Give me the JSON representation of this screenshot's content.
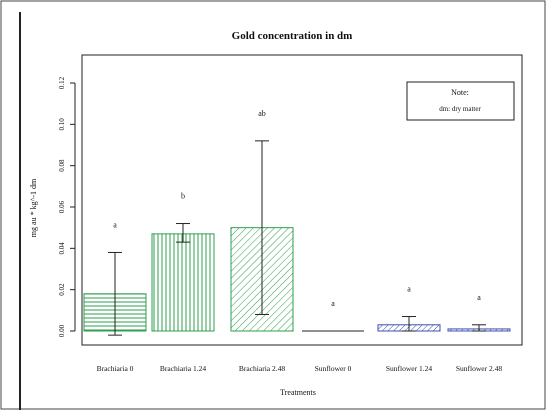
{
  "chart_data": {
    "type": "bar",
    "title": "Gold concentration in dm",
    "xlabel": "Treatments",
    "ylabel": "mg au * kg^-1 dm",
    "ylim": [
      0,
      0.12
    ],
    "yticks": [
      "0.00",
      "0.02",
      "0.04",
      "0.06",
      "0.08",
      "0.10",
      "0.12"
    ],
    "categories": [
      "Brachiaria 0",
      "Brachiaria 1.24",
      "Brachiaria 2.48",
      "Sunflower 0",
      "Sunflower 1.24",
      "Sunflower 2.48"
    ],
    "values": [
      0.018,
      0.047,
      0.05,
      0.0,
      0.003,
      0.001
    ],
    "error_low": [
      -0.002,
      0.043,
      0.008,
      0.0,
      0.0,
      0.0
    ],
    "error_high": [
      0.038,
      0.052,
      0.092,
      0.0,
      0.007,
      0.003
    ],
    "letters": [
      "a",
      "b",
      "ab",
      "a",
      "a",
      "a"
    ],
    "fill_patterns": [
      "horizontal-green",
      "vertical-green",
      "diagonal-green",
      "none",
      "diagonal-blue",
      "diagonal-blue"
    ],
    "colors": {
      "green": "#2e9e4f",
      "blue": "#3c4fb0"
    },
    "note": {
      "title": "Note:",
      "text": "dm: dry matter"
    },
    "grid": false
  }
}
